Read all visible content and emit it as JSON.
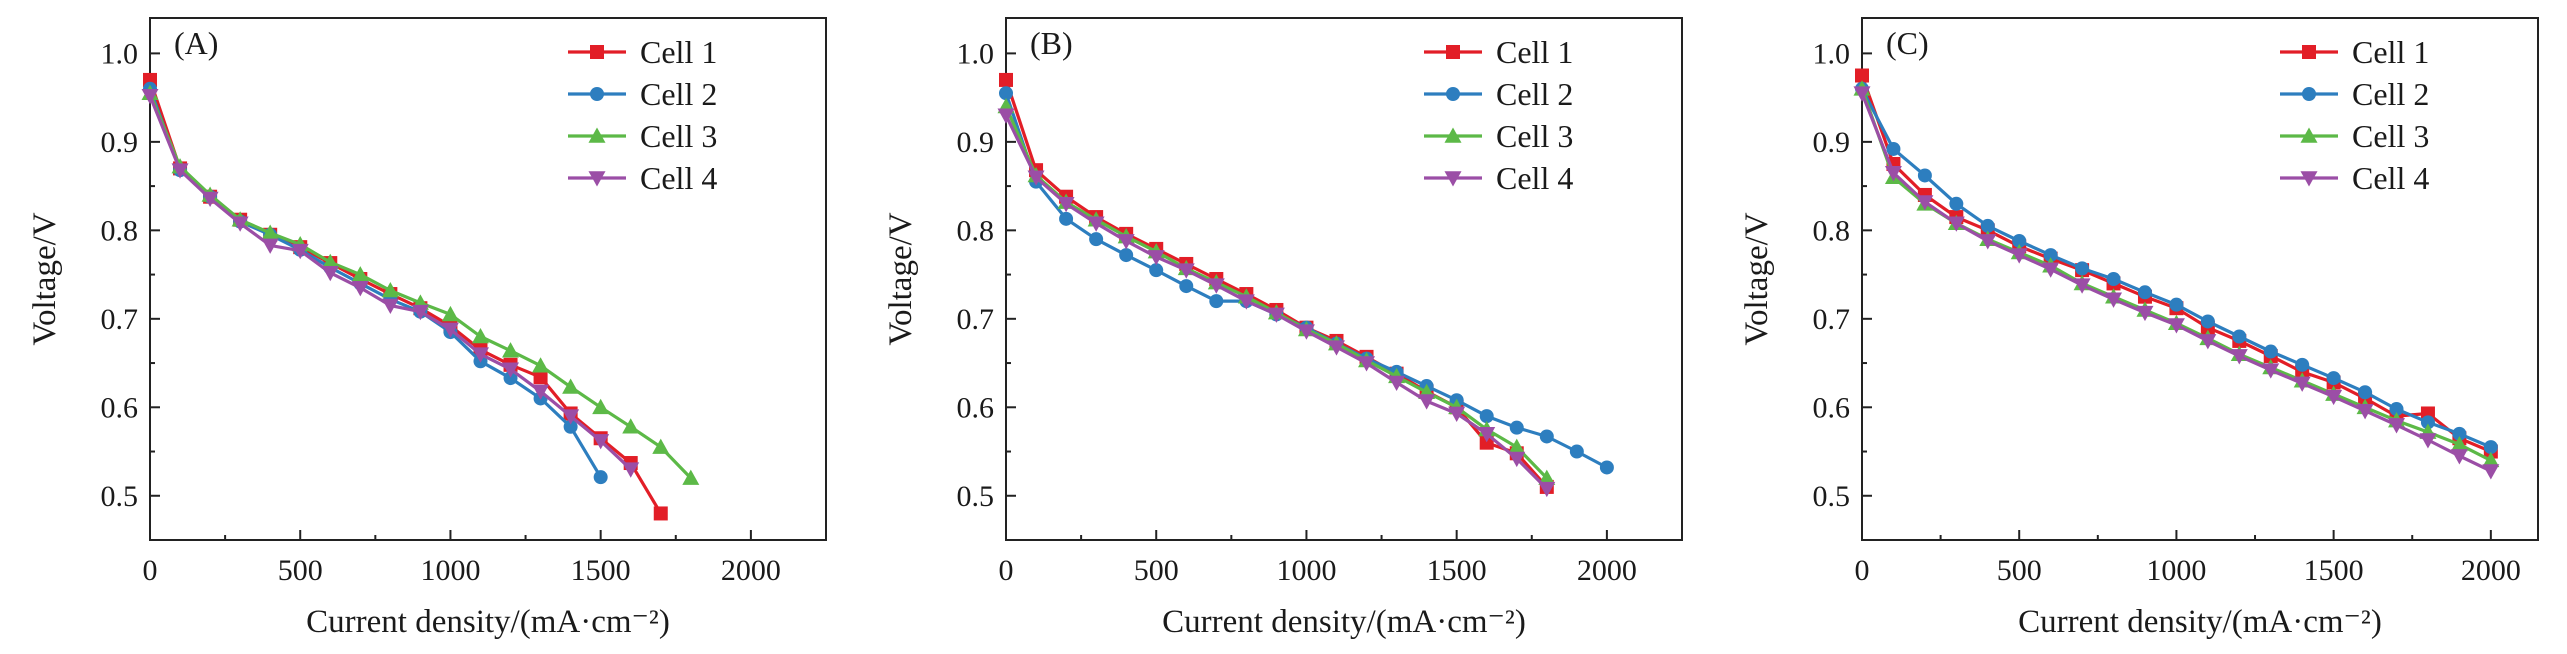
{
  "colors": {
    "Cell 1": "#e21e27",
    "Cell 2": "#2d7ebf",
    "Cell 3": "#5cb947",
    "Cell 4": "#9b4ea6"
  },
  "markers": {
    "Cell 1": "square",
    "Cell 2": "circle",
    "Cell 3": "triangle-up",
    "Cell 4": "triangle-down"
  },
  "chart_data": [
    {
      "panel_label": "(A)",
      "type": "line",
      "xlabel": "Current density/(mA·cm⁻²)",
      "ylabel": "Voltage/V",
      "xlim": [
        0,
        2250
      ],
      "ylim": [
        0.45,
        1.04
      ],
      "xticks": [
        0,
        500,
        1000,
        1500,
        2000
      ],
      "yticks": [
        0.5,
        0.6,
        0.7,
        0.8,
        0.9,
        1.0
      ],
      "xtick_labels": [
        "0",
        "500",
        "1000",
        "1500",
        "2000"
      ],
      "ytick_labels": [
        "0.5",
        "0.6",
        "0.7",
        "0.8",
        "0.9",
        "1.0"
      ],
      "legend_position": "top-right",
      "series": [
        {
          "name": "Cell 1",
          "x": [
            0,
            100,
            200,
            300,
            400,
            500,
            600,
            700,
            800,
            900,
            1000,
            1100,
            1200,
            1300,
            1400,
            1500,
            1600,
            1700
          ],
          "y": [
            0.97,
            0.87,
            0.838,
            0.812,
            0.795,
            0.781,
            0.763,
            0.745,
            0.728,
            0.712,
            0.692,
            0.665,
            0.648,
            0.634,
            0.593,
            0.565,
            0.537,
            0.48
          ]
        },
        {
          "name": "Cell 2",
          "x": [
            0,
            100,
            200,
            300,
            400,
            500,
            600,
            700,
            800,
            900,
            1000,
            1100,
            1200,
            1300,
            1400,
            1500
          ],
          "y": [
            0.96,
            0.868,
            0.838,
            0.81,
            0.795,
            0.778,
            0.758,
            0.74,
            0.722,
            0.708,
            0.685,
            0.652,
            0.633,
            0.61,
            0.578,
            0.521
          ]
        },
        {
          "name": "Cell 3",
          "x": [
            0,
            100,
            200,
            300,
            400,
            500,
            600,
            700,
            800,
            900,
            1000,
            1100,
            1200,
            1300,
            1400,
            1500,
            1600,
            1700,
            1800
          ],
          "y": [
            0.955,
            0.872,
            0.84,
            0.812,
            0.797,
            0.784,
            0.764,
            0.75,
            0.732,
            0.718,
            0.705,
            0.68,
            0.664,
            0.647,
            0.623,
            0.6,
            0.578,
            0.555,
            0.52
          ]
        },
        {
          "name": "Cell 4",
          "x": [
            0,
            100,
            200,
            300,
            400,
            500,
            600,
            700,
            800,
            900,
            1000,
            1100,
            1200,
            1300,
            1400,
            1500,
            1600
          ],
          "y": [
            0.952,
            0.868,
            0.836,
            0.808,
            0.783,
            0.777,
            0.752,
            0.735,
            0.715,
            0.708,
            0.688,
            0.66,
            0.643,
            0.618,
            0.59,
            0.562,
            0.53
          ]
        }
      ]
    },
    {
      "panel_label": "(B)",
      "type": "line",
      "xlabel": "Current density/(mA·cm⁻²)",
      "ylabel": "Voltage/V",
      "xlim": [
        0,
        2250
      ],
      "ylim": [
        0.45,
        1.04
      ],
      "xticks": [
        0,
        500,
        1000,
        1500,
        2000
      ],
      "yticks": [
        0.5,
        0.6,
        0.7,
        0.8,
        0.9,
        1.0
      ],
      "xtick_labels": [
        "0",
        "500",
        "1000",
        "1500",
        "2000"
      ],
      "ytick_labels": [
        "0.5",
        "0.6",
        "0.7",
        "0.8",
        "0.9",
        "1.0"
      ],
      "legend_position": "top-right",
      "series": [
        {
          "name": "Cell 1",
          "x": [
            0,
            100,
            200,
            300,
            400,
            500,
            600,
            700,
            800,
            900,
            1000,
            1100,
            1200,
            1300,
            1400,
            1500,
            1600,
            1700,
            1800
          ],
          "y": [
            0.97,
            0.868,
            0.838,
            0.815,
            0.796,
            0.779,
            0.762,
            0.745,
            0.728,
            0.71,
            0.69,
            0.675,
            0.657,
            0.638,
            0.618,
            0.6,
            0.56,
            0.548,
            0.51
          ]
        },
        {
          "name": "Cell 2",
          "x": [
            0,
            100,
            200,
            300,
            400,
            500,
            600,
            700,
            800,
            900,
            1000,
            1100,
            1200,
            1300,
            1400,
            1500,
            1600,
            1700,
            1800,
            1900,
            2000
          ],
          "y": [
            0.955,
            0.855,
            0.813,
            0.79,
            0.772,
            0.755,
            0.737,
            0.72,
            0.72,
            0.705,
            0.69,
            0.672,
            0.655,
            0.64,
            0.624,
            0.608,
            0.59,
            0.577,
            0.567,
            0.55,
            0.532
          ]
        },
        {
          "name": "Cell 3",
          "x": [
            0,
            100,
            200,
            300,
            400,
            500,
            600,
            700,
            800,
            900,
            1000,
            1100,
            1200,
            1300,
            1400,
            1500,
            1600,
            1700,
            1800
          ],
          "y": [
            0.94,
            0.862,
            0.832,
            0.812,
            0.793,
            0.776,
            0.757,
            0.741,
            0.725,
            0.707,
            0.688,
            0.672,
            0.653,
            0.635,
            0.617,
            0.6,
            0.575,
            0.555,
            0.52
          ]
        },
        {
          "name": "Cell 4",
          "x": [
            0,
            100,
            200,
            300,
            400,
            500,
            600,
            700,
            800,
            900,
            1000,
            1100,
            1200,
            1300,
            1400,
            1500,
            1600,
            1700,
            1800
          ],
          "y": [
            0.93,
            0.86,
            0.83,
            0.808,
            0.788,
            0.77,
            0.755,
            0.738,
            0.72,
            0.705,
            0.686,
            0.668,
            0.65,
            0.628,
            0.607,
            0.593,
            0.57,
            0.542,
            0.508
          ]
        }
      ]
    },
    {
      "panel_label": "(C)",
      "type": "line",
      "xlabel": "Current density/(mA·cm⁻²)",
      "ylabel": "Voltage/V",
      "xlim": [
        0,
        2150
      ],
      "ylim": [
        0.45,
        1.04
      ],
      "xticks": [
        0,
        500,
        1000,
        1500,
        2000
      ],
      "yticks": [
        0.5,
        0.6,
        0.7,
        0.8,
        0.9,
        1.0
      ],
      "xtick_labels": [
        "0",
        "500",
        "1000",
        "1500",
        "2000"
      ],
      "ytick_labels": [
        "0.5",
        "0.6",
        "0.7",
        "0.8",
        "0.9",
        "1.0"
      ],
      "legend_position": "top-right",
      "series": [
        {
          "name": "Cell 1",
          "x": [
            0,
            100,
            200,
            300,
            400,
            500,
            600,
            700,
            800,
            900,
            1000,
            1100,
            1200,
            1300,
            1400,
            1500,
            1600,
            1700,
            1800,
            1900,
            2000
          ],
          "y": [
            0.975,
            0.875,
            0.84,
            0.815,
            0.8,
            0.782,
            0.768,
            0.755,
            0.74,
            0.725,
            0.712,
            0.69,
            0.675,
            0.658,
            0.64,
            0.628,
            0.61,
            0.59,
            0.593,
            0.565,
            0.55
          ]
        },
        {
          "name": "Cell 2",
          "x": [
            0,
            100,
            200,
            300,
            400,
            500,
            600,
            700,
            800,
            900,
            1000,
            1100,
            1200,
            1300,
            1400,
            1500,
            1600,
            1700,
            1800,
            1900,
            2000
          ],
          "y": [
            0.96,
            0.892,
            0.862,
            0.83,
            0.805,
            0.788,
            0.772,
            0.757,
            0.745,
            0.73,
            0.716,
            0.697,
            0.68,
            0.663,
            0.648,
            0.633,
            0.617,
            0.598,
            0.583,
            0.57,
            0.555
          ]
        },
        {
          "name": "Cell 3",
          "x": [
            0,
            100,
            200,
            300,
            400,
            500,
            600,
            700,
            800,
            900,
            1000,
            1100,
            1200,
            1300,
            1400,
            1500,
            1600,
            1700,
            1800,
            1900,
            2000
          ],
          "y": [
            0.96,
            0.86,
            0.83,
            0.808,
            0.79,
            0.775,
            0.76,
            0.74,
            0.725,
            0.71,
            0.695,
            0.678,
            0.66,
            0.645,
            0.63,
            0.615,
            0.6,
            0.585,
            0.572,
            0.558,
            0.54
          ]
        },
        {
          "name": "Cell 4",
          "x": [
            0,
            100,
            200,
            300,
            400,
            500,
            600,
            700,
            800,
            900,
            1000,
            1100,
            1200,
            1300,
            1400,
            1500,
            1600,
            1700,
            1800,
            1900,
            2000
          ],
          "y": [
            0.955,
            0.865,
            0.832,
            0.808,
            0.788,
            0.772,
            0.756,
            0.738,
            0.722,
            0.707,
            0.693,
            0.675,
            0.658,
            0.642,
            0.627,
            0.612,
            0.596,
            0.58,
            0.563,
            0.545,
            0.528
          ]
        }
      ]
    }
  ]
}
